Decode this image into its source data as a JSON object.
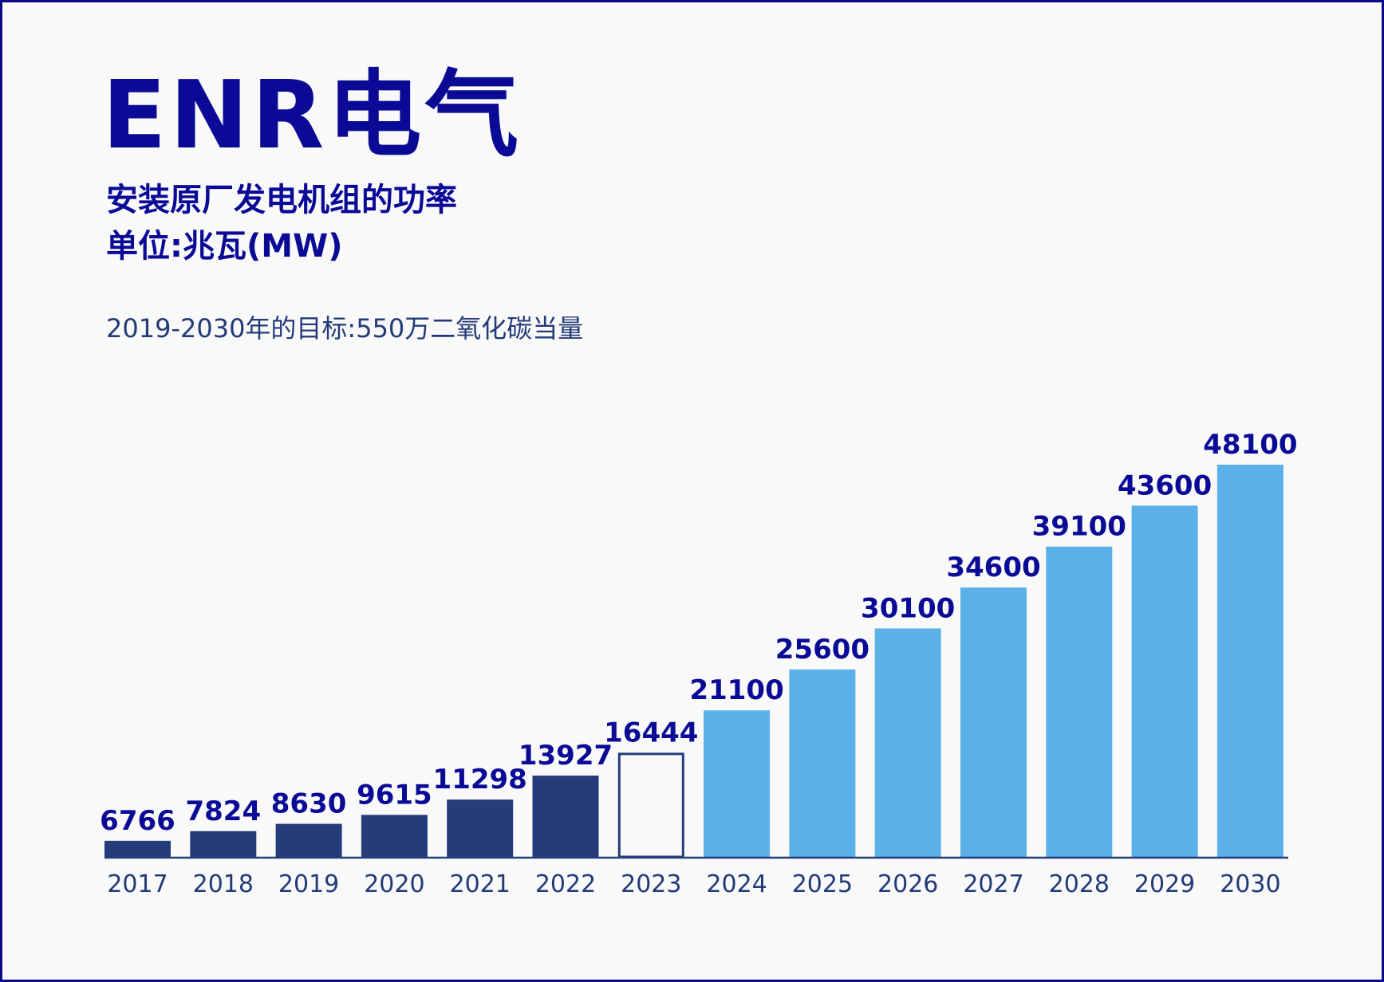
{
  "header": {
    "brand": "ENR电气",
    "subtitle_line1": "安装原厂发电机组的功率",
    "subtitle_line2": "单位:兆瓦(MW)",
    "target_note": "2019-2030年的目标:550万二氧化碳当量"
  },
  "colors": {
    "historical": "#243c7a",
    "current_outline": "#243c7a",
    "forecast": "#5bb0e8",
    "label_text": "#0a0a96",
    "axis_text": "#233a78",
    "axis_line": "#243c7a"
  },
  "chart_data": {
    "type": "bar",
    "title": "安装原厂发电机组的功率",
    "ylabel": "单位:兆瓦(MW)",
    "xlabel": "",
    "categories": [
      "2017",
      "2018",
      "2019",
      "2020",
      "2021",
      "2022",
      "2023",
      "2024",
      "2025",
      "2026",
      "2027",
      "2028",
      "2029",
      "2030"
    ],
    "values": [
      6766,
      7824,
      8630,
      9615,
      11298,
      13927,
      16444,
      21100,
      25600,
      30100,
      34600,
      39100,
      43600,
      48100
    ],
    "value_labels": [
      "6766",
      "7824",
      "8630",
      "9615",
      "11298",
      "13927",
      "16444",
      "21100",
      "25600",
      "30100",
      "34600",
      "39100",
      "43600",
      "48100"
    ],
    "bar_styles": [
      "historical",
      "historical",
      "historical",
      "historical",
      "historical",
      "historical",
      "current",
      "forecast",
      "forecast",
      "forecast",
      "forecast",
      "forecast",
      "forecast",
      "forecast"
    ],
    "grid": false,
    "legend": "none"
  }
}
